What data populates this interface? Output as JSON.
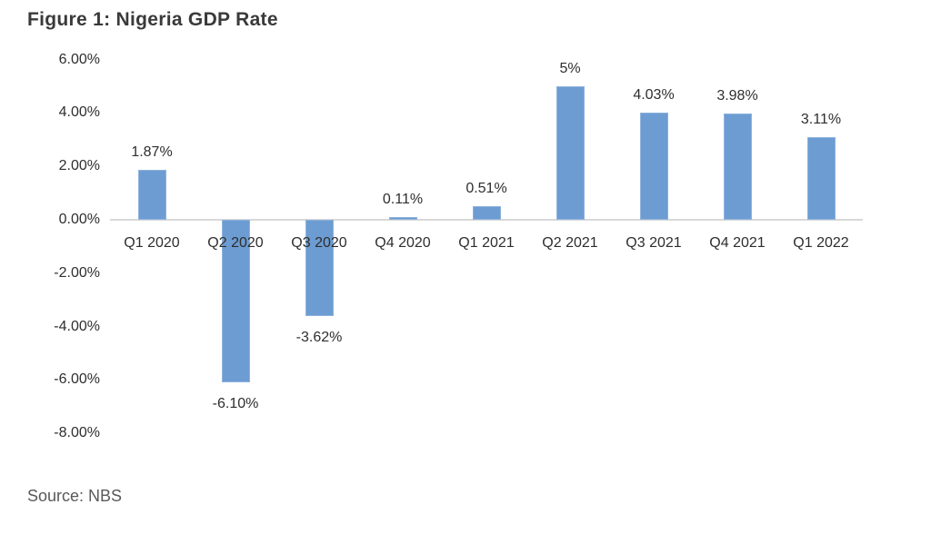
{
  "title": "Figure 1: Nigeria GDP Rate",
  "source": "Source: NBS",
  "chart_data": {
    "type": "bar",
    "title": "Figure 1: Nigeria GDP Rate",
    "xlabel": "",
    "ylabel": "",
    "categories": [
      "Q1 2020",
      "Q2 2020",
      "Q3 2020",
      "Q4 2020",
      "Q1 2021",
      "Q2 2021",
      "Q3 2021",
      "Q4 2021",
      "Q1 2022"
    ],
    "values": [
      1.87,
      -6.1,
      -3.62,
      0.11,
      0.51,
      5,
      4.03,
      3.98,
      3.11
    ],
    "data_labels": [
      "1.87%",
      "-6.10%",
      "-3.62%",
      "0.11%",
      "0.51%",
      "5%",
      "4.03%",
      "3.98%",
      "3.11%"
    ],
    "y_ticks": [
      "6.00%",
      "4.00%",
      "2.00%",
      "0.00%",
      "-2.00%",
      "-4.00%",
      "-6.00%",
      "-8.00%"
    ],
    "y_tick_values": [
      6,
      4,
      2,
      0,
      -2,
      -4,
      -6,
      -8
    ],
    "ylim": [
      -8,
      6
    ],
    "grid": false,
    "legend": "none",
    "bar_color": "#6c9cd2",
    "bar_border_color": "#8fb3dd",
    "axis_line_color": "#d9d9d9",
    "label_color": "#2e2e2e",
    "source_note": "Source: NBS"
  }
}
